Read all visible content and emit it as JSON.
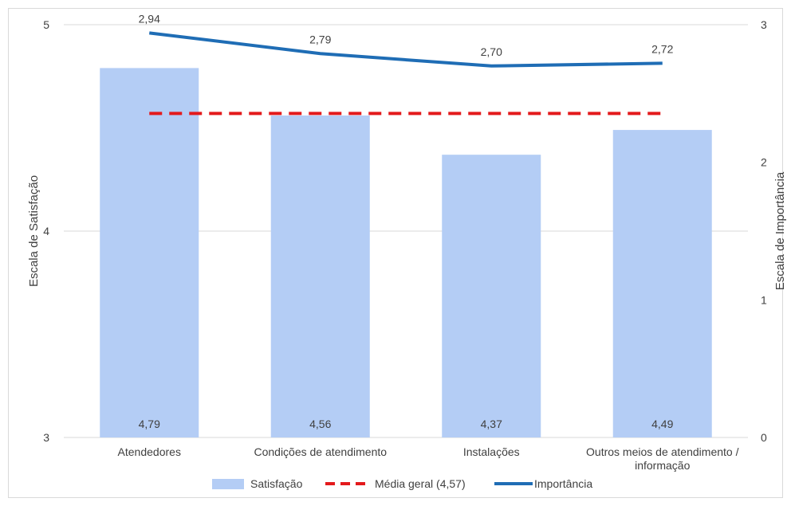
{
  "chart_data": {
    "type": "bar",
    "categories": [
      [
        "Atendedores"
      ],
      [
        "Condições de atendimento"
      ],
      [
        "Instalações"
      ],
      [
        "Outros meios de atendimento /",
        "informação"
      ]
    ],
    "series": [
      {
        "name": "Satisfação",
        "kind": "bar",
        "axis": "left",
        "color": "#b4cdf5",
        "values": [
          4.79,
          4.56,
          4.37,
          4.49
        ],
        "labels": [
          "4,79",
          "4,56",
          "4,37",
          "4,49"
        ]
      },
      {
        "name": "Média geral (4,57)",
        "kind": "line-dashed",
        "axis": "left",
        "color": "#e31a1c",
        "values": [
          4.57,
          4.57,
          4.57,
          4.57
        ]
      },
      {
        "name": "Importância",
        "kind": "line",
        "axis": "right",
        "color": "#1f6db5",
        "values": [
          2.94,
          2.79,
          2.7,
          2.72
        ],
        "labels": [
          "2,94",
          "2,79",
          "2,70",
          "2,72"
        ]
      }
    ],
    "ylabel_left": "Escala de Satisfação",
    "ylabel_right": "Escala de Importância",
    "ylim_left": [
      3,
      5
    ],
    "ylim_right": [
      0,
      3
    ],
    "yticks_left": [
      "3",
      "4",
      "5"
    ],
    "yticks_right": [
      "0",
      "1",
      "2",
      "3"
    ],
    "grid": true,
    "legend_position": "bottom"
  }
}
